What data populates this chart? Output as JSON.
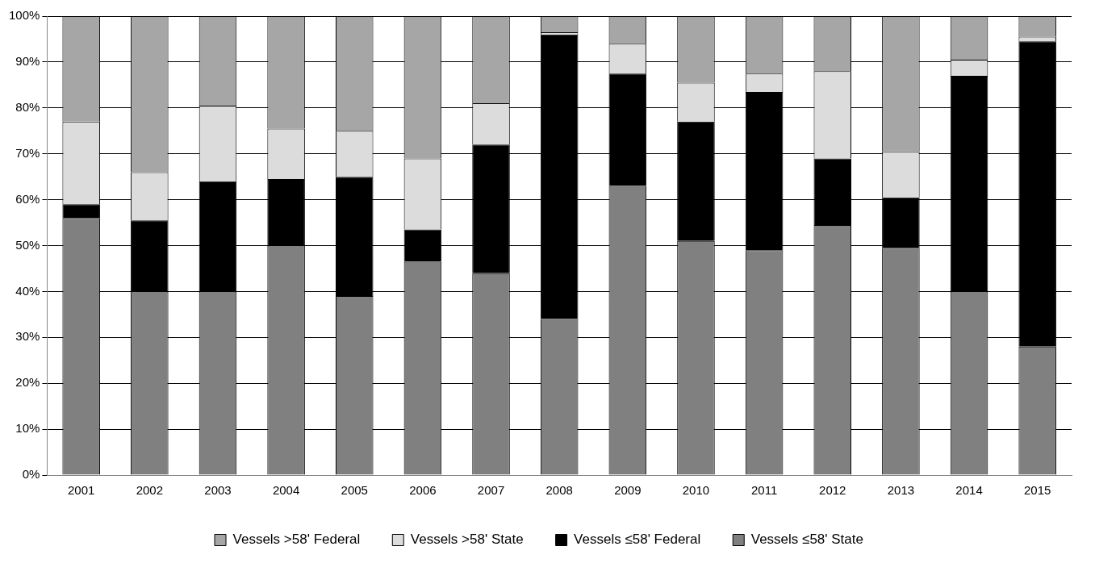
{
  "chart_data": {
    "type": "bar",
    "stacked": true,
    "categories": [
      "2001",
      "2002",
      "2003",
      "2004",
      "2005",
      "2006",
      "2007",
      "2008",
      "2009",
      "2010",
      "2011",
      "2012",
      "2013",
      "2014",
      "2015"
    ],
    "series": [
      {
        "name": "Vessels ≤58' State",
        "color": "#808080",
        "values": [
          56,
          40,
          40,
          50,
          39,
          46.5,
          44,
          34,
          63,
          51,
          49,
          54.5,
          49.5,
          40,
          28
        ]
      },
      {
        "name": "Vessels ≤58' Federal",
        "color": "#000000",
        "values": [
          3,
          15.5,
          24,
          14.5,
          26,
          7,
          28,
          62,
          24.5,
          26,
          34.5,
          14.5,
          11,
          47,
          66.5
        ]
      },
      {
        "name": "Vessels >58' State",
        "color": "#dcdcdc",
        "values": [
          18,
          10.5,
          16.5,
          11,
          10,
          15.5,
          9,
          0.5,
          6.5,
          8.5,
          4,
          19,
          10,
          3.5,
          1
        ]
      },
      {
        "name": "Vessels >58' Federal",
        "color": "#a6a6a6",
        "values": [
          23,
          34,
          19.5,
          24.5,
          25,
          31,
          19,
          3.5,
          6,
          14.5,
          12.5,
          12,
          29.5,
          9.5,
          4.5
        ]
      }
    ],
    "ylim": [
      0,
      100
    ],
    "yticks": [
      {
        "value": 0,
        "label": "0%"
      },
      {
        "value": 10,
        "label": "10%"
      },
      {
        "value": 20,
        "label": "20%"
      },
      {
        "value": 30,
        "label": "30%"
      },
      {
        "value": 40,
        "label": "40%"
      },
      {
        "value": 50,
        "label": "50%"
      },
      {
        "value": 60,
        "label": "60%"
      },
      {
        "value": 70,
        "label": "70%"
      },
      {
        "value": 80,
        "label": "80%"
      },
      {
        "value": 90,
        "label": "90%"
      },
      {
        "value": 100,
        "label": "100%"
      }
    ],
    "grid": "y",
    "legend": "bottom"
  }
}
